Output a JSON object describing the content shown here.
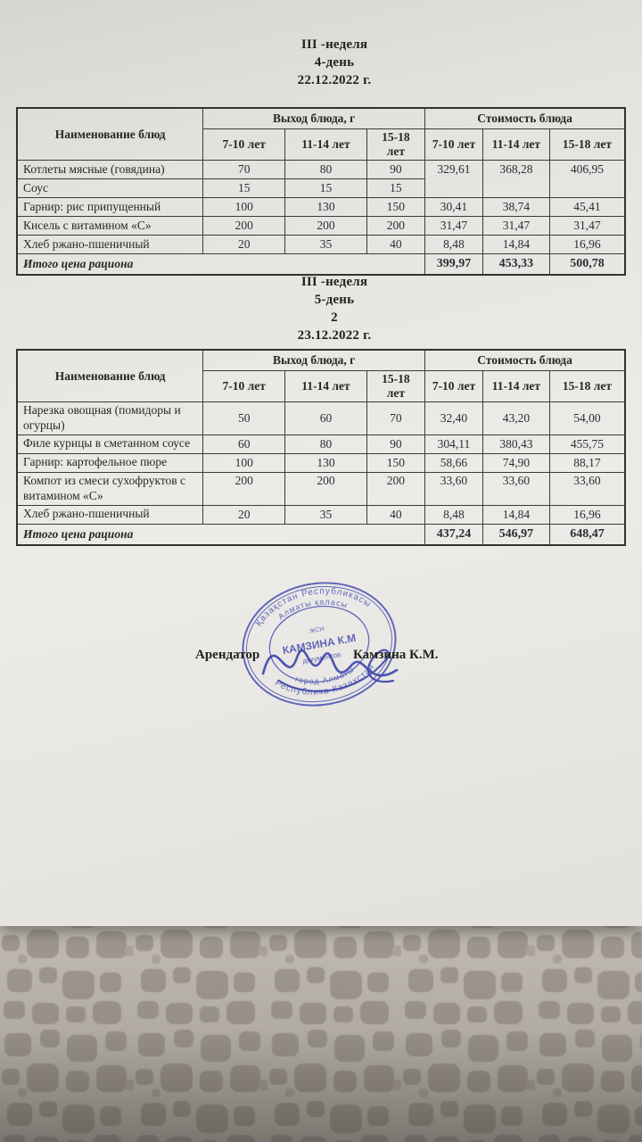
{
  "sections": [
    {
      "title_lines": [
        "III -неделя",
        "4-день",
        "22.12.2022 г."
      ],
      "table": {
        "header": {
          "name_label": "Наименование блюд",
          "output_group": "Выход блюда, г",
          "cost_group": "Стоимость блюда",
          "age_cols": [
            "7-10 лет",
            "11-14 лет",
            "15-18 лет"
          ]
        },
        "rows": [
          {
            "name": "Котлеты мясные (говядина)",
            "out": [
              "70",
              "80",
              "90"
            ],
            "cost": [
              "329,61",
              "368,28",
              "406,95"
            ],
            "cost_rowspan": 2
          },
          {
            "name": "Соус",
            "out": [
              "15",
              "15",
              "15"
            ]
          },
          {
            "name": "Гарнир: рис  припущенный",
            "out": [
              "100",
              "130",
              "150"
            ],
            "cost": [
              "30,41",
              "38,74",
              "45,41"
            ]
          },
          {
            "name": "Кисель с витамином «С»",
            "out": [
              "200",
              "200",
              "200"
            ],
            "cost": [
              "31,47",
              "31,47",
              "31,47"
            ]
          },
          {
            "name": "Хлеб ржано-пшеничный",
            "out": [
              "20",
              "35",
              "40"
            ],
            "cost": [
              "8,48",
              "14,84",
              "16,96"
            ]
          }
        ],
        "total_label": "Итого цена рациона",
        "totals": [
          "399,97",
          "453,33",
          "500,78"
        ]
      }
    },
    {
      "title_lines": [
        "III -неделя",
        "5-день",
        "2",
        "23.12.2022 г."
      ],
      "table": {
        "header": {
          "name_label": "Наименование блюд",
          "output_group": "Выход блюда, г",
          "cost_group": "Стоимость блюда",
          "age_cols": [
            "7-10 лет",
            "11-14 лет",
            "15-18 лет"
          ]
        },
        "rows": [
          {
            "name": "Нарезка овощная (помидоры и огурцы)",
            "out": [
              "50",
              "60",
              "70"
            ],
            "cost": [
              "32,40",
              "43,20",
              "54,00"
            ]
          },
          {
            "name": "Филе курицы в сметанном соусе",
            "out": [
              "60",
              "80",
              "90"
            ],
            "cost": [
              "304,11",
              "380,43",
              "455,75"
            ]
          },
          {
            "name": "Гарнир: картофельное пюре",
            "out": [
              "100",
              "130",
              "150"
            ],
            "cost": [
              "58,66",
              "74,90",
              "88,17"
            ]
          },
          {
            "name": "Компот из смеси сухофруктов с витамином «С»",
            "out": [
              "200",
              "200",
              "200"
            ],
            "cost": [
              "33,60",
              "33,60",
              "33,60"
            ],
            "top_vals": true
          },
          {
            "name": "Хлеб ржано-пшеничный",
            "out": [
              "20",
              "35",
              "40"
            ],
            "cost": [
              "8,48",
              "14,84",
              "16,96"
            ]
          }
        ],
        "total_label": "Итого цена рациона",
        "totals": [
          "437,24",
          "546,97",
          "648,47"
        ]
      }
    }
  ],
  "signature": {
    "label": "Арендатор",
    "name": "Камзина К.М."
  },
  "stamp": {
    "arc_top_outer": "Қазақстан Республикасы",
    "arc_top_inner": "Алматы қаласы",
    "arc_bottom_outer": "Республика Казахстан",
    "arc_bottom_inner": "город Алматы",
    "center_small_top": "ЖСН",
    "center_name": "КАМЗИНА К.М",
    "center_small_bottom": "документов",
    "ink_color": "#4850b4"
  }
}
